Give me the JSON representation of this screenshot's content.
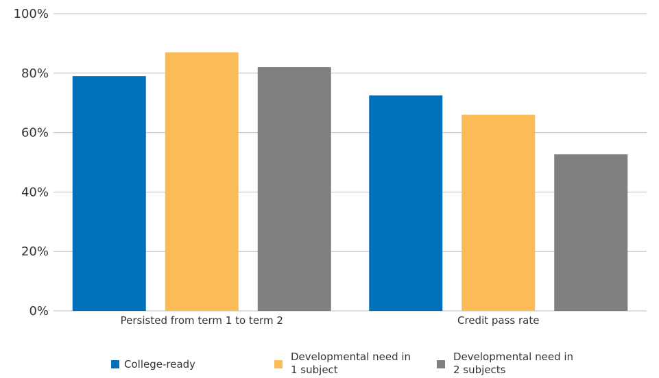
{
  "chart_data": {
    "type": "bar",
    "categories": [
      "Persisted from term 1 to term 2",
      "Credit pass rate"
    ],
    "series": [
      {
        "name": "College-ready",
        "values": [
          79,
          72.5
        ],
        "color": "#0070BA"
      },
      {
        "name": "Developmental need in 1 subject",
        "name_lines": [
          "Developmental need in",
          "1 subject"
        ],
        "values": [
          87,
          66
        ],
        "color": "#FBBB57"
      },
      {
        "name": "Developmental need in 2 subjects",
        "name_lines": [
          "Developmental need in",
          "2 subjects"
        ],
        "values": [
          82,
          52.7
        ],
        "color": "#7F7F7F"
      }
    ],
    "ylim": [
      0,
      100
    ],
    "yticks": [
      0,
      20,
      40,
      60,
      80,
      100
    ],
    "ytick_labels": [
      "0%",
      "20%",
      "40%",
      "60%",
      "80%",
      "100%"
    ],
    "grid": true,
    "legend_position": "bottom",
    "title": "",
    "xlabel": "",
    "ylabel": ""
  }
}
